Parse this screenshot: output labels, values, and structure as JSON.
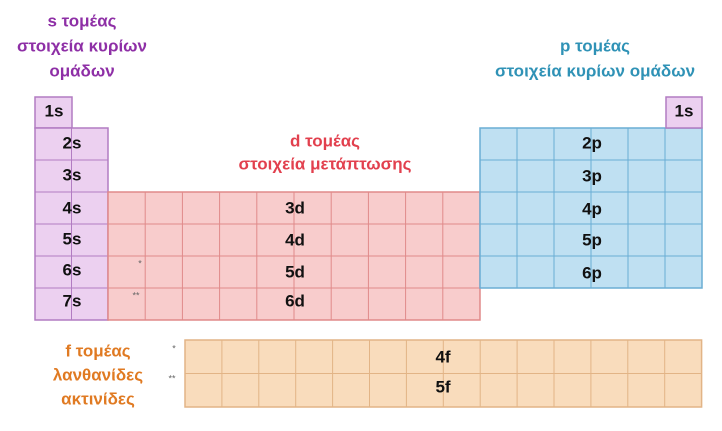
{
  "s_block": {
    "title": [
      "s τομέας",
      "στοιχεία κυρίων",
      "ομάδων"
    ],
    "orbitals": [
      "1s",
      "2s",
      "3s",
      "4s",
      "5s",
      "6s",
      "7s"
    ]
  },
  "d_block": {
    "title": [
      "d τομέας",
      "στοιχεία μετάπτωσης"
    ],
    "orbitals": [
      "3d",
      "4d",
      "5d",
      "6d"
    ],
    "markers": [
      "*",
      "**"
    ]
  },
  "p_block": {
    "title": [
      "p τομέας",
      "στοιχεία κυρίων ομάδων"
    ],
    "orbitals": [
      "1s",
      "2p",
      "3p",
      "4p",
      "5p",
      "6p"
    ]
  },
  "f_block": {
    "title": [
      "f τομέας",
      "λανθανίδες",
      "ακτινίδες"
    ],
    "orbitals": [
      "4f",
      "5f"
    ],
    "markers": [
      "*",
      "**"
    ]
  }
}
